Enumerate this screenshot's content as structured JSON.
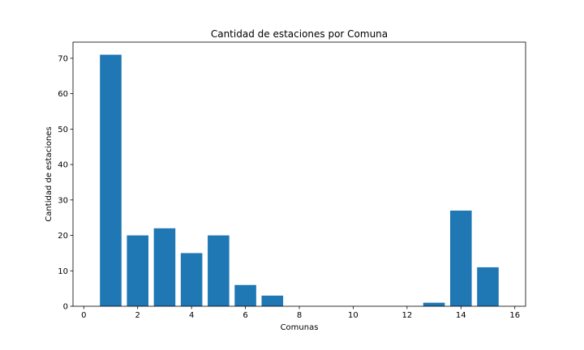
{
  "chart_data": {
    "type": "bar",
    "title": "Cantidad de estaciones por Comuna",
    "xlabel": "Comunas",
    "ylabel": "Cantidad de estaciones",
    "x": [
      1,
      2,
      3,
      4,
      5,
      6,
      7,
      13,
      14,
      15
    ],
    "values": [
      71,
      20,
      22,
      15,
      20,
      6,
      3,
      1,
      27,
      11
    ],
    "bar_width": 0.8,
    "xlim": [
      -0.4,
      16.4
    ],
    "ylim": [
      0,
      74.55
    ],
    "xticks": [
      0,
      2,
      4,
      6,
      8,
      10,
      12,
      14,
      16
    ],
    "yticks": [
      0,
      10,
      20,
      30,
      40,
      50,
      60,
      70
    ],
    "bar_color": "#1f77b4",
    "grid": false,
    "legend": null
  }
}
